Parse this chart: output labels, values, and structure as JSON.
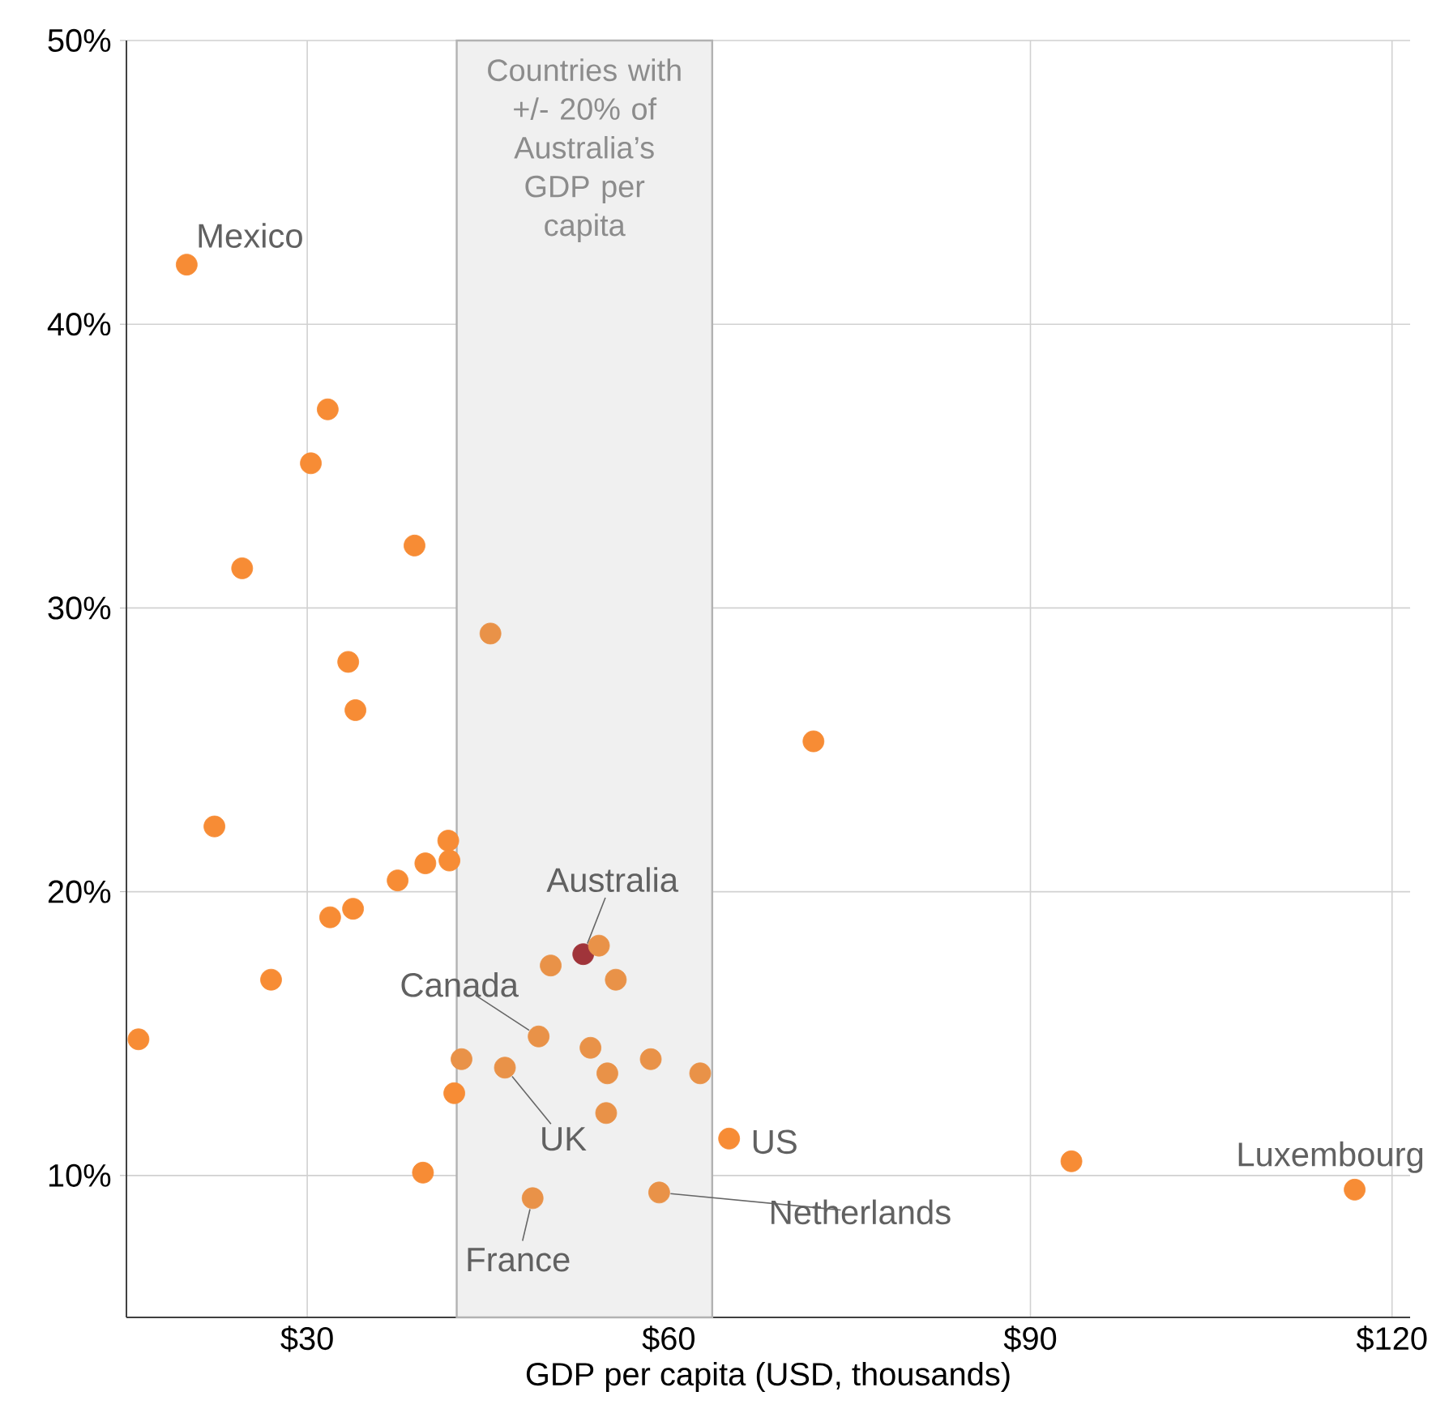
{
  "chart_data": {
    "type": "scatter",
    "xlabel": "GDP per capita (USD, thousands)",
    "x": [
      20.0,
      31.7,
      30.3,
      24.6,
      38.9,
      45.2,
      33.4,
      34.0,
      72.0,
      22.3,
      41.7,
      41.8,
      39.8,
      37.5,
      33.8,
      31.9,
      27.0,
      16.0,
      52.9,
      54.2,
      50.2,
      55.6,
      49.2,
      53.5,
      42.8,
      46.4,
      54.9,
      58.5,
      62.6,
      42.2,
      54.8,
      65.0,
      39.6,
      48.7,
      59.2,
      93.4,
      116.9
    ],
    "values": [
      42.1,
      37.0,
      35.1,
      31.4,
      32.2,
      29.1,
      28.1,
      26.4,
      25.3,
      22.3,
      21.8,
      21.1,
      21.0,
      20.4,
      19.4,
      19.1,
      16.9,
      14.8,
      17.8,
      18.1,
      17.4,
      16.9,
      14.9,
      14.5,
      14.1,
      13.8,
      13.6,
      14.1,
      13.6,
      12.9,
      12.2,
      11.3,
      10.1,
      9.2,
      9.4,
      10.5,
      9.5
    ],
    "colors": [
      "#f78c35",
      "#f78c35",
      "#f78c35",
      "#f78c35",
      "#f78c35",
      "#e99248",
      "#f78c35",
      "#f78c35",
      "#f78c35",
      "#f78c35",
      "#f78c35",
      "#f78c35",
      "#f78c35",
      "#f78c35",
      "#f78c35",
      "#f78c35",
      "#f78c35",
      "#f78c35",
      "#a0343a",
      "#e99248",
      "#e99248",
      "#e99248",
      "#e99248",
      "#e99248",
      "#e99248",
      "#e99248",
      "#e99248",
      "#e99248",
      "#e99248",
      "#f78c35",
      "#e99248",
      "#f78c35",
      "#f78c35",
      "#e99248",
      "#e99248",
      "#f78c35",
      "#f78c35"
    ],
    "marker": "circle",
    "xlim": [
      15,
      121.5
    ],
    "ylim": [
      5,
      50
    ],
    "xticks": [
      {
        "value": 30,
        "label": "$30"
      },
      {
        "value": 60,
        "label": "$60"
      },
      {
        "value": 90,
        "label": "$90"
      },
      {
        "value": 120,
        "label": "$120"
      }
    ],
    "yticks": [
      {
        "value": 10,
        "label": "10%"
      },
      {
        "value": 20,
        "label": "20%"
      },
      {
        "value": 30,
        "label": "30%"
      },
      {
        "value": 40,
        "label": "40%"
      },
      {
        "value": 50,
        "label": "50%"
      }
    ],
    "grid": true,
    "bands": [
      {
        "axis": "x",
        "from": 42.4,
        "to": 63.6,
        "label": "Countries with +/- 20% of Australia’s GDP per capita",
        "color": "#f0f0f0"
      }
    ],
    "annotations": [
      {
        "text": "Mexico",
        "x": 20.0,
        "y": 42.1
      },
      {
        "text": "Australia",
        "x": 52.9,
        "y": 17.8
      },
      {
        "text": "Canada",
        "x": 49.2,
        "y": 14.9
      },
      {
        "text": "UK",
        "x": 46.4,
        "y": 13.8
      },
      {
        "text": "France",
        "x": 48.7,
        "y": 9.2
      },
      {
        "text": "Netherlands",
        "x": 59.2,
        "y": 9.4
      },
      {
        "text": "US",
        "x": 65.0,
        "y": 11.3
      },
      {
        "text": "Luxembourg",
        "x": 116.9,
        "y": 9.5
      }
    ]
  }
}
